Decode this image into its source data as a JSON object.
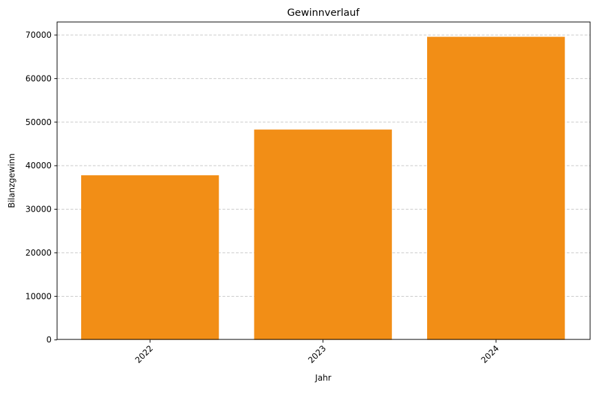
{
  "chart_data": {
    "type": "bar",
    "title": "Gewinnverlauf",
    "xlabel": "Jahr",
    "ylabel": "Bilanzgewinn",
    "categories": [
      "2022",
      "2023",
      "2024"
    ],
    "values": [
      37800,
      48300,
      69600
    ],
    "ylim": [
      0,
      73000
    ],
    "yticks": [
      0,
      10000,
      20000,
      30000,
      40000,
      50000,
      60000,
      70000
    ],
    "ytick_labels": [
      "0",
      "10000",
      "20000",
      "30000",
      "40000",
      "50000",
      "60000",
      "70000"
    ],
    "xtick_rotation_deg": 45,
    "grid": "y-dashed",
    "legend": "none",
    "colors": {
      "bar": "#f28e16",
      "grid": "#c8c8c8"
    }
  }
}
